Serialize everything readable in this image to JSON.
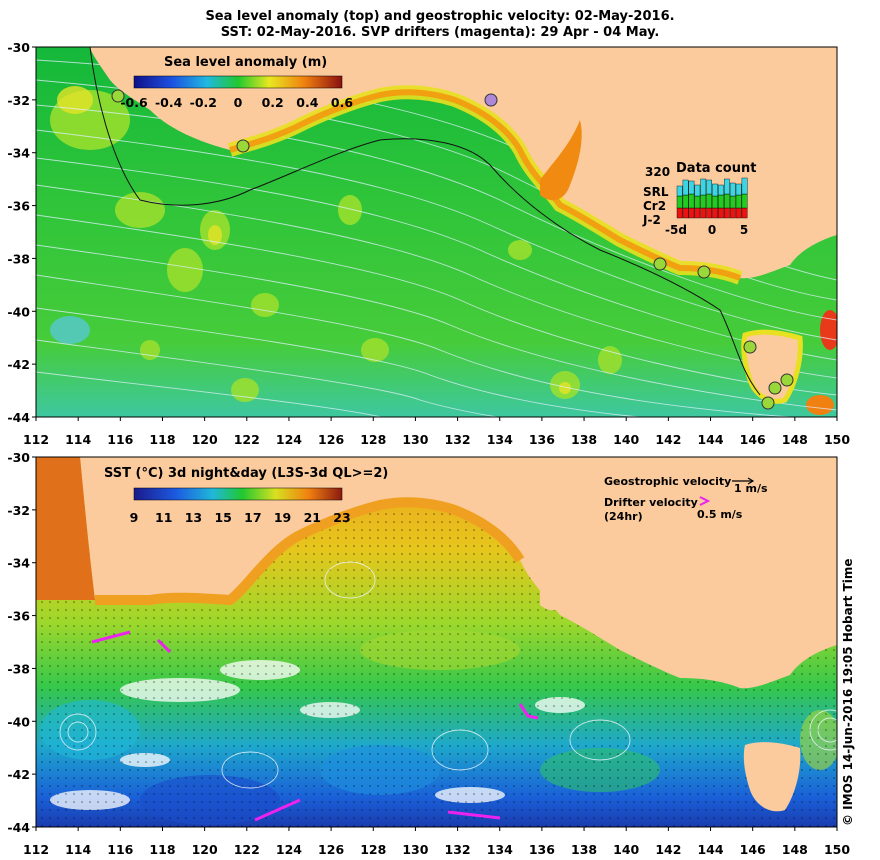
{
  "title_line1": "Sea level anomaly (top) and geostrophic velocity: 02-May-2016.",
  "title_line2": "SST: 02-May-2016. SVP drifters (magenta): 29 Apr - 04 May.",
  "axes": {
    "lon_ticks": [
      "112",
      "114",
      "116",
      "118",
      "120",
      "122",
      "124",
      "126",
      "128",
      "130",
      "132",
      "134",
      "136",
      "138",
      "140",
      "142",
      "144",
      "146",
      "148",
      "150"
    ],
    "lat_ticks": [
      "-30",
      "-32",
      "-34",
      "-36",
      "-38",
      "-40",
      "-42",
      "-44"
    ]
  },
  "top_panel": {
    "colorbar_title": "Sea level anomaly (m)",
    "colorbar_ticks": [
      "-0.6",
      "-0.4",
      "-0.2",
      "0",
      "0.2",
      "0.4",
      "0.6"
    ],
    "data_count": {
      "title": "Data count",
      "max_label": "320",
      "x_ticks": [
        "-5d",
        "0",
        "5"
      ],
      "legend": [
        {
          "label": "SRL",
          "color": "#3ad6e6"
        },
        {
          "label": "Cr2",
          "color": "#1fcc1f"
        },
        {
          "label": "J-2",
          "color": "#ee1111"
        }
      ]
    }
  },
  "bottom_panel": {
    "colorbar_title": "SST (°C) 3d night&day (L3S-3d QL>=2)",
    "colorbar_ticks": [
      "9",
      "11",
      "13",
      "15",
      "17",
      "19",
      "21",
      "23"
    ],
    "geo_velocity_label": "Geostrophic velocity",
    "geo_velocity_scale": "1 m/s",
    "drifter_label_1": "Drifter velocity",
    "drifter_label_2": "(24hr)",
    "drifter_scale": "0.5 m/s"
  },
  "credit": "© IMOS 14-Jun-2016 19:05 Hobart Time",
  "colors": {
    "land": "#fbcb9e",
    "drifter": "#ee22ee"
  }
}
